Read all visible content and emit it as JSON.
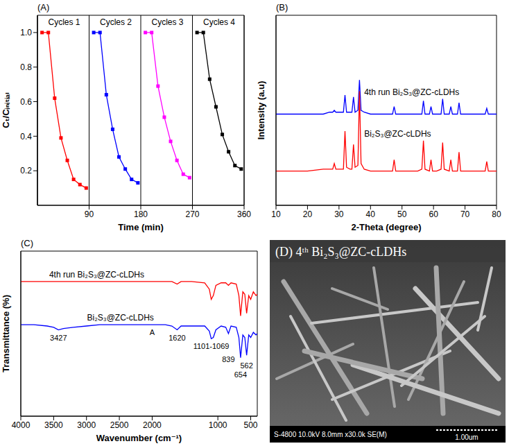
{
  "chart_data": [
    {
      "panel": "(A)",
      "type": "line",
      "x_label": "Time (min)",
      "y_label": "Cₜ/Cᵢₙᵢₜᵢₐₗ",
      "xlim": [
        0,
        360
      ],
      "xticks": [
        90,
        180,
        270,
        360
      ],
      "ylim": [
        0,
        1.1
      ],
      "yticks": [
        0.2,
        0.4,
        0.6,
        0.8,
        {
          "value": 1,
          "label": "1.0"
        }
      ],
      "grid": "x",
      "marker": "square",
      "series": [
        {
          "name": "Cycles 1",
          "color": "#ff0000",
          "x": [
            8,
            19,
            30,
            41,
            52,
            63,
            74,
            85
          ],
          "values": [
            1,
            1,
            0.62,
            0.39,
            0.26,
            0.15,
            0.12,
            0.1
          ]
        },
        {
          "name": "Cycles 2",
          "color": "#0000ff",
          "x": [
            98,
            109,
            120,
            131,
            142,
            153,
            164,
            175
          ],
          "values": [
            1,
            1,
            0.64,
            0.44,
            0.28,
            0.21,
            0.15,
            0.13
          ]
        },
        {
          "name": "Cycles 3",
          "color": "#ff00ff",
          "x": [
            188,
            199,
            210,
            221,
            232,
            243,
            254,
            265
          ],
          "values": [
            1,
            1,
            0.69,
            0.51,
            0.37,
            0.26,
            0.18,
            0.16
          ]
        },
        {
          "name": "Cycles 4",
          "color": "#000000",
          "x": [
            278,
            289,
            300,
            311,
            322,
            333,
            344,
            355
          ],
          "values": [
            1,
            1,
            0.73,
            0.57,
            0.41,
            0.31,
            0.23,
            0.21
          ]
        }
      ]
    },
    {
      "panel": "(B)",
      "type": "line",
      "x_label": "2-Theta (degree)",
      "y_label": "Intensity (a.u)",
      "xlim": [
        10,
        80
      ],
      "xticks": [
        10,
        20,
        30,
        40,
        50,
        60,
        70,
        80
      ],
      "ylim": [
        0,
        100
      ],
      "tick_labels": "x",
      "x": [
        10,
        15,
        20,
        25,
        27,
        28,
        28.5,
        29,
        30,
        31.4,
        31.9,
        32.4,
        33.5,
        34.1,
        34.6,
        35.1,
        36,
        36.5,
        37,
        38,
        40,
        45,
        47,
        47.5,
        48,
        50,
        55,
        56.3,
        56.8,
        57.3,
        58.7,
        59.2,
        59.7,
        61,
        62.4,
        62.9,
        63.4,
        65,
        65.5,
        66,
        67.6,
        68.1,
        68.6,
        70,
        75,
        76.4,
        76.9,
        77.4,
        80
      ],
      "series": [
        {
          "name": "4th run Bi₂S₃@ZC-cLDHs",
          "color": "#0000ff",
          "values": [
            48,
            48,
            48,
            48,
            49,
            49,
            50,
            49,
            49,
            49,
            58,
            49,
            49,
            49,
            57,
            49,
            50,
            66,
            50,
            49,
            48,
            48,
            48,
            52,
            48,
            48,
            48,
            48,
            55,
            48,
            48,
            52,
            48,
            48,
            48,
            56,
            48,
            48,
            52,
            48,
            48,
            54,
            48,
            48,
            48,
            48,
            51,
            48,
            48
          ]
        },
        {
          "name": "Bi₂S₃@ZC-cLDHs",
          "color": "#ff0000",
          "values": [
            18,
            18,
            18,
            19,
            19,
            19,
            22,
            19,
            19,
            19,
            39,
            20,
            19,
            19,
            32,
            20,
            21,
            60,
            22,
            19,
            18,
            18,
            18,
            24,
            18,
            18,
            18,
            19,
            34,
            19,
            18,
            24,
            18,
            18,
            19,
            33,
            19,
            18,
            24,
            18,
            18,
            28,
            18,
            18,
            18,
            18,
            23,
            18,
            18
          ]
        }
      ]
    },
    {
      "panel": "(C)",
      "type": "line",
      "x_label": "Wavenumber (cm⁻¹)",
      "y_label": "Transmittance (%)",
      "xlim": [
        4000,
        400
      ],
      "xticks": [
        4000,
        3500,
        3000,
        2500,
        2000,
        1000,
        500
      ],
      "ylim": [
        -40,
        90
      ],
      "tick_labels": "x",
      "x": [
        4000,
        3800,
        3600,
        3500,
        3427,
        3350,
        3200,
        3000,
        2800,
        2500,
        2200,
        2000,
        1800,
        1700,
        1620,
        1560,
        1400,
        1200,
        1130,
        1101,
        1069,
        1030,
        950,
        880,
        839,
        800,
        720,
        680,
        654,
        620,
        590,
        562,
        530,
        500,
        460,
        420,
        400
      ],
      "series": [
        {
          "name": "4th run Bi₂S₃@ZC-cLDHs",
          "color": "#ff0000",
          "values": [
            66,
            66,
            66,
            66,
            66,
            66,
            66,
            66,
            66,
            66,
            66,
            66,
            66,
            66,
            64,
            66,
            66,
            65,
            60,
            52,
            55,
            63,
            65,
            65,
            63,
            65,
            64,
            55,
            39,
            58,
            56,
            41,
            55,
            52,
            58,
            55,
            56
          ]
        },
        {
          "name": "Bi₂S₃@ZC-cLDHs",
          "color": "#0000ff",
          "values": [
            32,
            32,
            31,
            30,
            28,
            29,
            30,
            31,
            32,
            32,
            32,
            32,
            32,
            31,
            28,
            31,
            31,
            31,
            27,
            21,
            22,
            28,
            31,
            30,
            25,
            31,
            30,
            22,
            6,
            24,
            22,
            8,
            24,
            22,
            26,
            24,
            25
          ]
        }
      ],
      "annotations": [
        {
          "text": "3427",
          "x": 3427
        },
        {
          "text": "A",
          "x": 2000
        },
        {
          "text": "1620",
          "x": 1620
        },
        {
          "text": "1101-1069",
          "x": 1101
        },
        {
          "text": "839",
          "x": 839
        },
        {
          "text": "654",
          "x": 654
        },
        {
          "text": "562",
          "x": 562
        }
      ]
    },
    {
      "panel": "(D)",
      "type": "image",
      "title": "4ᵗʰ Bi₂S₃@ZC-cLDHs",
      "caption": "S-4800 10.0kV 8.0mm x30.0k SE(M)",
      "scale_bar": "1.00um"
    }
  ]
}
